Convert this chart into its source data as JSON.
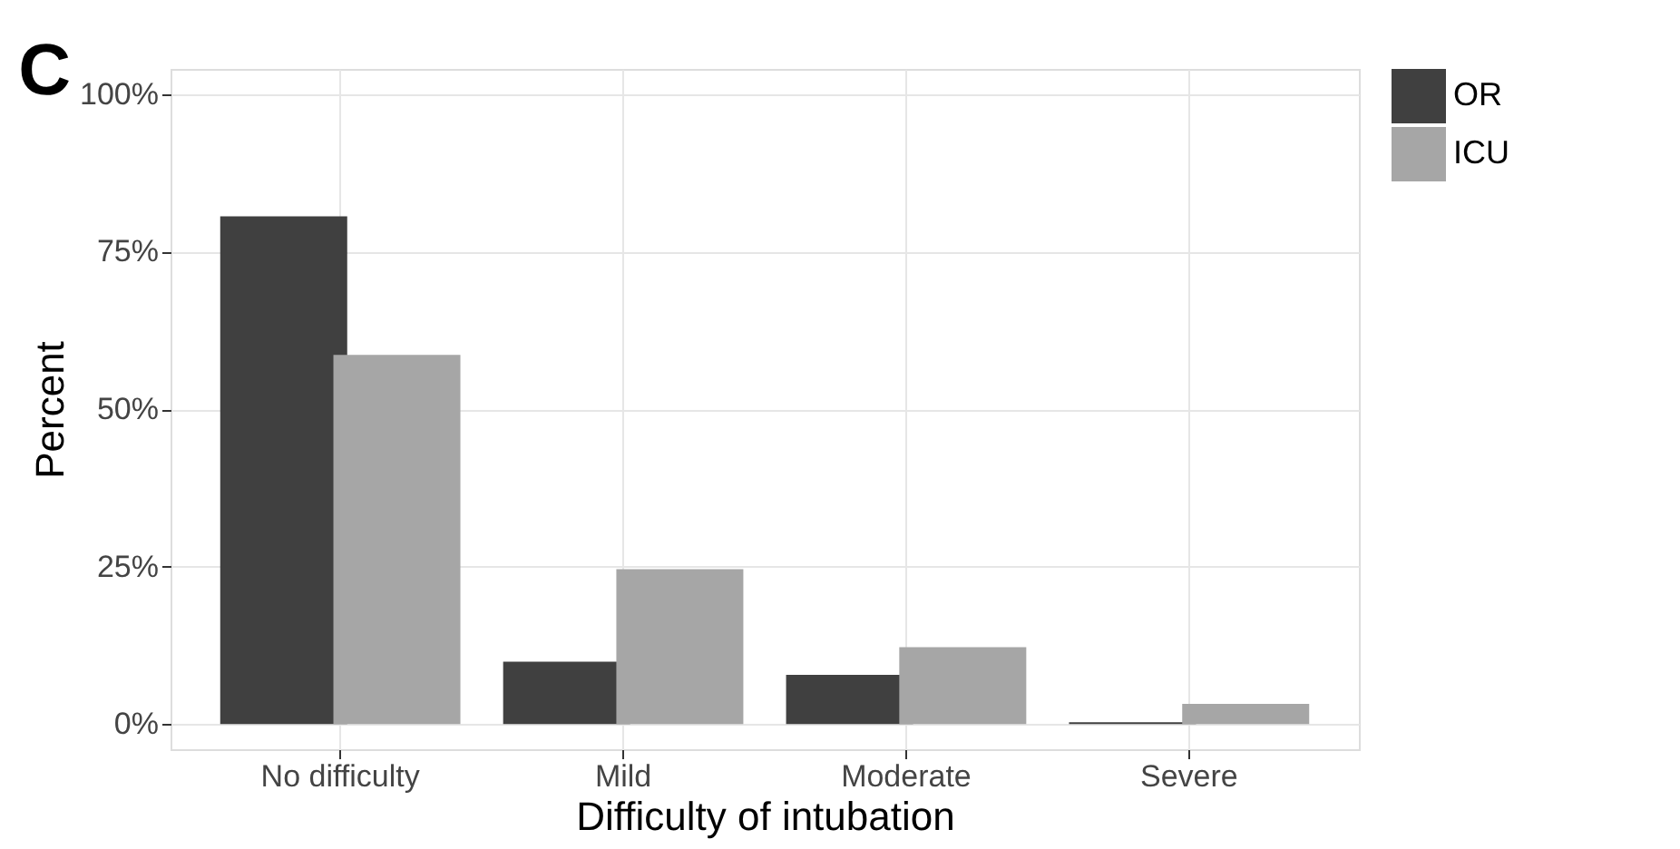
{
  "chart_data": {
    "type": "bar",
    "xlabel": "Difficulty of intubation",
    "ylabel": "Percent",
    "categories": [
      "No difficulty",
      "Mild",
      "Moderate",
      "Severe"
    ],
    "series": [
      {
        "name": "OR",
        "color": "#404040",
        "values": [
          80.6,
          9.9,
          7.8,
          0.3
        ]
      },
      {
        "name": "ICU",
        "color": "#a6a6a6",
        "values": [
          58.6,
          24.6,
          12.2,
          3.2
        ]
      }
    ],
    "ylim": [
      -4,
      104
    ],
    "yticks": [
      {
        "value": 0,
        "label": "0%"
      },
      {
        "value": 25,
        "label": "25%"
      },
      {
        "value": 50,
        "label": "50%"
      },
      {
        "value": 75,
        "label": "75%"
      },
      {
        "value": 100,
        "label": "100%"
      }
    ],
    "grid": true,
    "legend": "right",
    "annotations": [
      "C"
    ]
  }
}
